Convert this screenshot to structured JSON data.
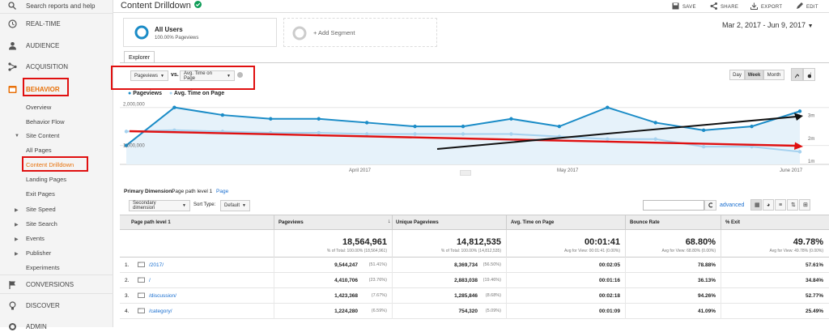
{
  "sidebar": {
    "search": "Search reports and help",
    "realtime": "REAL-TIME",
    "audience": "AUDIENCE",
    "acquisition": "ACQUISITION",
    "behavior": "BEHAVIOR",
    "overview": "Overview",
    "behavior_flow": "Behavior Flow",
    "site_content": "Site Content",
    "all_pages": "All Pages",
    "content_drilldown": "Content Drilldown",
    "landing_pages": "Landing Pages",
    "exit_pages": "Exit Pages",
    "site_speed": "Site Speed",
    "site_search": "Site Search",
    "events": "Events",
    "publisher": "Publisher",
    "experiments": "Experiments",
    "conversions": "CONVERSIONS",
    "discover": "DISCOVER",
    "admin": "ADMIN"
  },
  "header": {
    "title": "Content Drilldown",
    "save": "SAVE",
    "share": "SHARE",
    "export": "EXPORT",
    "edit": "EDIT",
    "date_range": "Mar 2, 2017 - Jun 9, 2017"
  },
  "segments": {
    "all_users": "All Users",
    "all_users_sub": "100.00% Pageviews",
    "add_segment": "+ Add Segment"
  },
  "explorer": {
    "tab": "Explorer",
    "metric1": "Pageviews",
    "vs": "vs.",
    "metric2": "Avg. Time on Page",
    "day": "Day",
    "week": "Week",
    "month": "Month"
  },
  "chart_data": {
    "type": "line",
    "legend": [
      "Pageviews",
      "Avg. Time on Page"
    ],
    "left_ticks": [
      "2,000,000",
      "1,000,000"
    ],
    "right_ticks": [
      "3m",
      "2m",
      "1m"
    ],
    "x_ticks": [
      "April 2017",
      "May 2017",
      "June 2017"
    ],
    "series": [
      {
        "name": "Pageviews",
        "color": "#1b8cc7",
        "values": [
          1000000,
          2000000,
          1800000,
          1700000,
          1700000,
          1600000,
          1500000,
          1500000,
          1700000,
          1500000,
          2000000,
          1600000,
          1400000,
          1500000,
          1900000
        ]
      },
      {
        "name": "Avg. Time on Page",
        "color": "#a6d2ef",
        "values": [
          2.3,
          2.35,
          2.3,
          2.25,
          2.25,
          2.2,
          2.2,
          2.2,
          2.2,
          2.1,
          2.0,
          2.0,
          1.7,
          1.7,
          1.5
        ]
      }
    ]
  },
  "table": {
    "primary_dim_label": "Primary Dimension:",
    "primary_dim_value": "Page path level 1",
    "page_link": "Page",
    "secondary_dim": "Secondary dimension",
    "sort_type_label": "Sort Type:",
    "sort_type": "Default",
    "advanced": "advanced",
    "columns": [
      "Page path level 1",
      "Pageviews",
      "Unique Pageviews",
      "Avg. Time on Page",
      "Bounce Rate",
      "% Exit"
    ],
    "totals": {
      "pageviews": "18,564,961",
      "pageviews_sub": "% of Total: 100.00% (18,564,961)",
      "unique": "14,812,535",
      "unique_sub": "% of Total: 100.00% (14,812,535)",
      "avg_time": "00:01:41",
      "avg_time_sub": "Avg for View: 00:01:41 (0.00%)",
      "bounce": "68.80%",
      "bounce_sub": "Avg for View: 68.80% (0.00%)",
      "exit": "49.78%",
      "exit_sub": "Avg for View: 49.78% (0.00%)"
    },
    "rows": [
      {
        "idx": "1.",
        "path": "/2017/",
        "pv": "9,544,247",
        "pv_pct": "(51.41%)",
        "upv": "8,369,734",
        "upv_pct": "(56.50%)",
        "time": "00:02:05",
        "bounce": "78.88%",
        "exit": "57.61%"
      },
      {
        "idx": "2.",
        "path": "/",
        "pv": "4,410,706",
        "pv_pct": "(23.76%)",
        "upv": "2,883,038",
        "upv_pct": "(19.46%)",
        "time": "00:01:16",
        "bounce": "36.13%",
        "exit": "34.84%"
      },
      {
        "idx": "3.",
        "path": "/discussion/",
        "pv": "1,423,368",
        "pv_pct": "(7.67%)",
        "upv": "1,285,846",
        "upv_pct": "(8.68%)",
        "time": "00:02:18",
        "bounce": "94.26%",
        "exit": "52.77%"
      },
      {
        "idx": "4.",
        "path": "/category/",
        "pv": "1,224,280",
        "pv_pct": "(6.59%)",
        "upv": "754,320",
        "upv_pct": "(5.09%)",
        "time": "00:01:09",
        "bounce": "41.09%",
        "exit": "25.49%"
      }
    ]
  }
}
